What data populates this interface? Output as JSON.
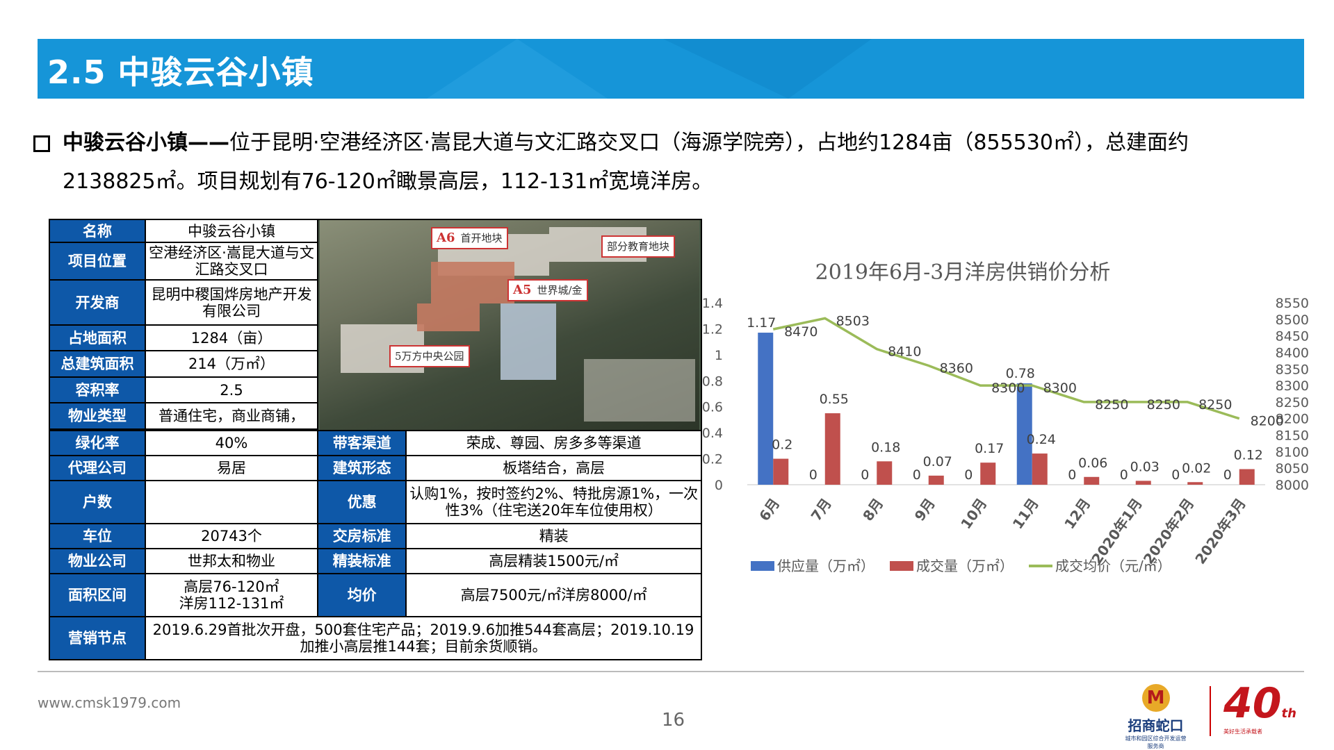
{
  "header": {
    "title": "2.5 中骏云谷小镇"
  },
  "intro": {
    "lead": "中骏云谷小镇——",
    "line1_rest": "位于昆明·空港经济区·嵩昆大道与文汇路交叉口（海源学院旁），占地约1284亩（855530㎡），总建面约",
    "line2": "2138825㎡。项目规划有76-120㎡瞰景高层，112-131㎡宽境洋房。"
  },
  "table": {
    "name_label": "名称",
    "name_value": "中骏云谷小镇",
    "location_label": "项目位置",
    "location_value": "空港经济区·嵩昆大道与文汇路交叉口",
    "developer_label": "开发商",
    "developer_value": "昆明中稷国烨房地产开发有限公司",
    "land_label": "占地面积",
    "land_value": "1284（亩）",
    "gfa_label": "总建筑面积",
    "gfa_value": "214（万㎡）",
    "far_label": "容积率",
    "far_value": "2.5",
    "type_label": "物业类型",
    "type_value": "普通住宅，商业商铺，",
    "green_label": "绿化率",
    "green_value": "40%",
    "channel_label": "带客渠道",
    "channel_value": "荣成、尊园、房多多等渠道",
    "agent_label": "代理公司",
    "agent_value": "易居",
    "form_label": "建筑形态",
    "form_value": "板塔结合，高层",
    "units_label": "户数",
    "units_value": "",
    "promo_label": "优惠",
    "promo_value": "认购1%，按时签约2%、特批房源1%，一次性3%（住宅送20年车位使用权）",
    "parking_label": "车位",
    "parking_value": "20743个",
    "delivery_label": "交房标准",
    "delivery_value": "精装",
    "pm_label": "物业公司",
    "pm_value": "世邦太和物业",
    "finish_label": "精装标准",
    "finish_value": "高层精装1500元/㎡",
    "area_label": "面积区间",
    "area_value_1": "高层76-120㎡",
    "area_value_2": "洋房112-131㎡",
    "price_label": "均价",
    "price_value": "高层7500元/㎡洋房8000/㎡",
    "marketing_label": "营销节点",
    "marketing_value": "2019.6.29首批次开盘，500套住宅产品；2019.9.6加推544套高层；2019.10.19加推小高层推144套；目前余货顺销。"
  },
  "photo": {
    "callout_a6_tag": "A6",
    "callout_a6": "首开地块",
    "callout_a5_tag": "A5",
    "callout_a5": "世界城/金",
    "callout_edu": "部分教育地块",
    "callout_park": "5万方中央公园"
  },
  "chart_data": {
    "type": "bar",
    "title": "2019年6月-3月洋房供销价分析",
    "categories": [
      "6月",
      "7月",
      "8月",
      "9月",
      "10月",
      "11月",
      "12月",
      "2020年1月",
      "2020年2月",
      "2020年3月"
    ],
    "series": [
      {
        "name": "供应量（万㎡）",
        "type": "bar",
        "axis": "left",
        "color": "#4472c4",
        "values": [
          1.17,
          0,
          0,
          0,
          0,
          0.78,
          0,
          0,
          0,
          0
        ]
      },
      {
        "name": "成交量（万㎡）",
        "type": "bar",
        "axis": "left",
        "color": "#c0504d",
        "values": [
          0.2,
          0.55,
          0.18,
          0.07,
          0.17,
          0.24,
          0.06,
          0.03,
          0.02,
          0.12
        ]
      },
      {
        "name": "成交均价（元/㎡）",
        "type": "line",
        "axis": "right",
        "color": "#9bbb59",
        "values": [
          8470,
          8503,
          8410,
          8360,
          8300,
          8300,
          8250,
          8250,
          8250,
          8200
        ]
      }
    ],
    "ylim_left": [
      0,
      1.4
    ],
    "yticks_left": [
      "0",
      "0.2",
      "0.4",
      "0.6",
      "0.8",
      "1",
      "1.2",
      "1.4"
    ],
    "ylim_right": [
      8000,
      8550
    ],
    "yticks_right": [
      "8000",
      "8050",
      "8100",
      "8150",
      "8200",
      "8250",
      "8300",
      "8350",
      "8400",
      "8450",
      "8500",
      "8550"
    ],
    "legend_position": "bottom",
    "grid": false
  },
  "footer": {
    "url": "www.cmsk1979.com",
    "page": "16",
    "brand": "招商蛇口",
    "brand_sub": "城市和园区综合开发运营服务商",
    "anniv": "40",
    "anniv_suffix": "th",
    "anniv_sub": "美好生活承载者"
  },
  "colors": {
    "banner": "#1695d8",
    "table_header": "#0e58a8",
    "supply": "#4472c4",
    "deal": "#c0504d",
    "price": "#9bbb59"
  }
}
